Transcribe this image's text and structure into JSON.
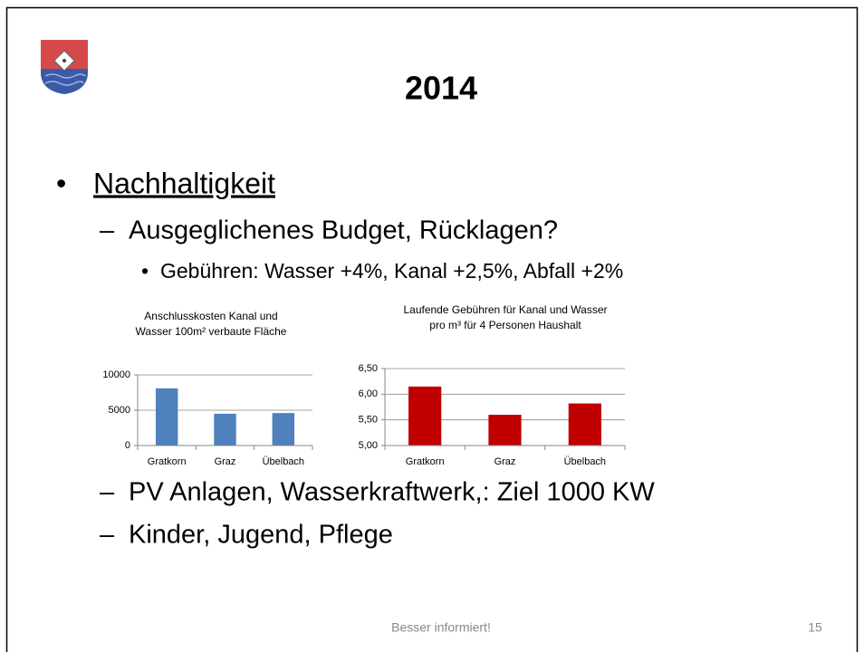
{
  "slide": {
    "title": "2014",
    "bullets": [
      {
        "marker": "•",
        "text": "Nachhaltigkeit"
      },
      {
        "marker": "–",
        "text": "Ausgeglichenes Budget, Rücklagen?"
      },
      {
        "marker": "•",
        "text": "Gebühren: Wasser +4%, Kanal +2,5%, Abfall +2%"
      },
      {
        "marker": "–",
        "text": "PV Anlagen, Wasserkraftwerk,: Ziel 1000 KW"
      },
      {
        "marker": "–",
        "text": "Kinder, Jugend, Pflege"
      }
    ],
    "footer": "Besser informiert!",
    "page_number": "15"
  },
  "chart_data": [
    {
      "type": "bar",
      "title": "Anschlusskosten  Kanal und Wasser 100m² verbaute Fläche",
      "categories": [
        "Gratkorn",
        "Graz",
        "Übelbach"
      ],
      "values": [
        8100,
        4500,
        4600
      ],
      "color": "#4f81bd",
      "ylim": [
        0,
        10000
      ],
      "yticks": [
        0,
        5000,
        10000
      ],
      "grid": true
    },
    {
      "type": "bar",
      "title": "Laufende Gebühren für Kanal und Wasser pro m³ für 4 Personen Haushalt",
      "categories": [
        "Gratkorn",
        "Graz",
        "Übelbach"
      ],
      "values": [
        6.15,
        5.6,
        5.82
      ],
      "color": "#c00000",
      "ylim": [
        5,
        6.5
      ],
      "yticks": [
        {
          "value": 5,
          "label": "5,00"
        },
        {
          "value": 5.5,
          "label": "5,50"
        },
        {
          "value": 6,
          "label": "6,00"
        },
        {
          "value": 6.5,
          "label": "6,50"
        }
      ],
      "grid": true
    }
  ]
}
